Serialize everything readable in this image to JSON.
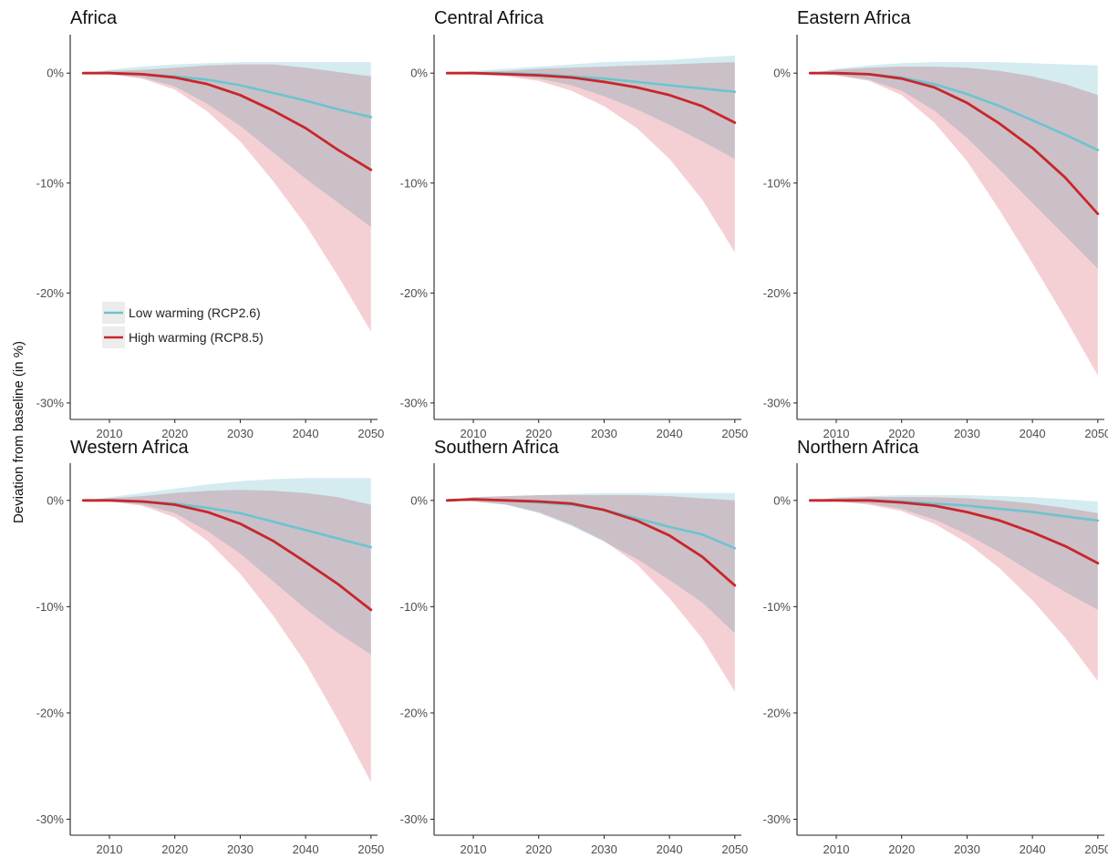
{
  "y_axis_title": "Deviation from baseline (in %)",
  "colors": {
    "low_line": "#6cc4d0",
    "low_band": "#cfeaee",
    "high_line": "#c8262b",
    "high_band": "#f0c0c6",
    "overlap_band": "#d9b7ba"
  },
  "chart_data": [
    {
      "type": "line",
      "title": "Africa",
      "x": [
        2006,
        2010,
        2015,
        2020,
        2025,
        2030,
        2035,
        2040,
        2045,
        2050
      ],
      "xticks": [
        "2010",
        "2020",
        "2030",
        "2040",
        "2050"
      ],
      "yticks": [
        "0%",
        "-10%",
        "-20%",
        "-30%"
      ],
      "xlim": [
        2004,
        2051
      ],
      "ylim": [
        -31.5,
        3.5
      ],
      "grid": false,
      "legend": {
        "position": "inside-left",
        "entries": [
          "Low warming (RCP2.6)",
          "High warming (RCP8.5)"
        ]
      },
      "series": [
        {
          "name": "Low warming (RCP2.6)",
          "values": [
            0,
            0,
            -0.1,
            -0.3,
            -0.6,
            -1.1,
            -1.8,
            -2.5,
            -3.3,
            -4.0
          ],
          "lower": [
            0,
            -0.1,
            -0.4,
            -1.2,
            -2.8,
            -4.8,
            -7.2,
            -9.6,
            -11.8,
            -14.0
          ],
          "upper": [
            0,
            0.3,
            0.6,
            0.8,
            0.9,
            1.0,
            1.0,
            1.0,
            1.0,
            1.0
          ]
        },
        {
          "name": "High warming (RCP8.5)",
          "values": [
            0,
            0,
            -0.1,
            -0.4,
            -1.0,
            -2.0,
            -3.4,
            -5.0,
            -7.0,
            -8.8
          ],
          "lower": [
            0,
            -0.1,
            -0.5,
            -1.5,
            -3.5,
            -6.2,
            -9.8,
            -13.8,
            -18.5,
            -23.5
          ],
          "upper": [
            0,
            0.2,
            0.3,
            0.5,
            0.7,
            0.8,
            0.8,
            0.5,
            0.1,
            -0.3
          ]
        }
      ]
    },
    {
      "type": "line",
      "title": "Central Africa",
      "x": [
        2006,
        2010,
        2015,
        2020,
        2025,
        2030,
        2035,
        2040,
        2045,
        2050
      ],
      "xticks": [
        "2010",
        "2020",
        "2030",
        "2040",
        "2050"
      ],
      "yticks": [
        "0%",
        "-10%",
        "-20%",
        "-30%"
      ],
      "xlim": [
        2004,
        2051
      ],
      "ylim": [
        -31.5,
        3.5
      ],
      "grid": false,
      "series": [
        {
          "name": "Low warming (RCP2.6)",
          "values": [
            0,
            0,
            0,
            -0.1,
            -0.3,
            -0.5,
            -0.8,
            -1.1,
            -1.4,
            -1.7
          ],
          "lower": [
            0,
            -0.1,
            -0.2,
            -0.5,
            -1.1,
            -2.1,
            -3.3,
            -4.7,
            -6.2,
            -7.8
          ],
          "upper": [
            0,
            0.2,
            0.4,
            0.6,
            0.8,
            1.0,
            1.1,
            1.2,
            1.4,
            1.6
          ]
        },
        {
          "name": "High warming (RCP8.5)",
          "values": [
            0,
            0,
            -0.1,
            -0.2,
            -0.4,
            -0.8,
            -1.3,
            -2.0,
            -3.0,
            -4.5
          ],
          "lower": [
            0,
            -0.1,
            -0.3,
            -0.7,
            -1.6,
            -3.0,
            -5.0,
            -7.8,
            -11.5,
            -16.3
          ],
          "upper": [
            0,
            0.1,
            0.2,
            0.4,
            0.5,
            0.6,
            0.7,
            0.8,
            0.9,
            1.0
          ]
        }
      ]
    },
    {
      "type": "line",
      "title": "Eastern Africa",
      "x": [
        2006,
        2010,
        2015,
        2020,
        2025,
        2030,
        2035,
        2040,
        2045,
        2050
      ],
      "xticks": [
        "2010",
        "2020",
        "2030",
        "2040",
        "2050"
      ],
      "yticks": [
        "0%",
        "-10%",
        "-20%",
        "-30%"
      ],
      "xlim": [
        2004,
        2051
      ],
      "ylim": [
        -31.5,
        3.5
      ],
      "grid": false,
      "series": [
        {
          "name": "Low warming (RCP2.6)",
          "values": [
            0,
            0,
            -0.1,
            -0.4,
            -1.0,
            -1.9,
            -3.0,
            -4.3,
            -5.6,
            -7.0
          ],
          "lower": [
            0,
            -0.2,
            -0.6,
            -1.6,
            -3.4,
            -5.9,
            -8.8,
            -11.8,
            -14.8,
            -17.8
          ],
          "upper": [
            0,
            0.4,
            0.7,
            0.9,
            1.0,
            1.0,
            1.0,
            0.9,
            0.8,
            0.7
          ]
        },
        {
          "name": "High warming (RCP8.5)",
          "values": [
            0,
            0,
            -0.1,
            -0.5,
            -1.3,
            -2.7,
            -4.6,
            -6.8,
            -9.5,
            -12.8
          ],
          "lower": [
            0,
            -0.2,
            -0.7,
            -2.0,
            -4.5,
            -8.0,
            -12.5,
            -17.3,
            -22.3,
            -27.5
          ],
          "upper": [
            0,
            0.3,
            0.5,
            0.6,
            0.6,
            0.5,
            0.2,
            -0.3,
            -1.0,
            -2.0
          ]
        }
      ]
    },
    {
      "type": "line",
      "title": "Western Africa",
      "x": [
        2006,
        2010,
        2015,
        2020,
        2025,
        2030,
        2035,
        2040,
        2045,
        2050
      ],
      "xticks": [
        "2010",
        "2020",
        "2030",
        "2040",
        "2050"
      ],
      "yticks": [
        "0%",
        "-10%",
        "-20%",
        "-30%"
      ],
      "xlim": [
        2004,
        2051
      ],
      "ylim": [
        -31.5,
        3.5
      ],
      "grid": false,
      "series": [
        {
          "name": "Low warming (RCP2.6)",
          "values": [
            0,
            0,
            -0.1,
            -0.3,
            -0.7,
            -1.2,
            -2.0,
            -2.8,
            -3.6,
            -4.4
          ],
          "lower": [
            0,
            -0.1,
            -0.4,
            -1.2,
            -2.9,
            -5.0,
            -7.6,
            -10.2,
            -12.5,
            -14.5
          ],
          "upper": [
            0,
            0.3,
            0.7,
            1.1,
            1.5,
            1.8,
            2.0,
            2.1,
            2.1,
            2.1
          ]
        },
        {
          "name": "High warming (RCP8.5)",
          "values": [
            0,
            0,
            -0.1,
            -0.4,
            -1.1,
            -2.2,
            -3.8,
            -5.8,
            -7.9,
            -10.3
          ],
          "lower": [
            0,
            -0.1,
            -0.5,
            -1.6,
            -3.8,
            -6.9,
            -10.8,
            -15.3,
            -20.7,
            -26.5
          ],
          "upper": [
            0,
            0.2,
            0.4,
            0.7,
            0.9,
            1.0,
            0.9,
            0.7,
            0.3,
            -0.4
          ]
        }
      ]
    },
    {
      "type": "line",
      "title": "Southern Africa",
      "x": [
        2006,
        2010,
        2015,
        2020,
        2025,
        2030,
        2035,
        2040,
        2045,
        2050
      ],
      "xticks": [
        "2010",
        "2020",
        "2030",
        "2040",
        "2050"
      ],
      "yticks": [
        "0%",
        "-10%",
        "-20%",
        "-30%"
      ],
      "xlim": [
        2004,
        2051
      ],
      "ylim": [
        -31.5,
        3.5
      ],
      "grid": false,
      "series": [
        {
          "name": "Low warming (RCP2.6)",
          "values": [
            0,
            0.1,
            0,
            -0.2,
            -0.4,
            -0.9,
            -1.7,
            -2.5,
            -3.2,
            -4.5
          ],
          "lower": [
            0,
            -0.1,
            -0.4,
            -1.2,
            -2.4,
            -3.9,
            -5.5,
            -7.5,
            -9.6,
            -12.5
          ],
          "upper": [
            0,
            0.3,
            0.4,
            0.5,
            0.6,
            0.7,
            0.7,
            0.7,
            0.7,
            0.7
          ]
        },
        {
          "name": "High warming (RCP8.5)",
          "values": [
            0,
            0.1,
            0,
            -0.1,
            -0.3,
            -0.9,
            -1.9,
            -3.3,
            -5.3,
            -8.0
          ],
          "lower": [
            0,
            -0.1,
            -0.4,
            -1.1,
            -2.3,
            -3.8,
            -6.0,
            -9.2,
            -13.0,
            -18.0
          ],
          "upper": [
            0,
            0.3,
            0.4,
            0.5,
            0.5,
            0.5,
            0.5,
            0.4,
            0.2,
            0.0
          ]
        }
      ]
    },
    {
      "type": "line",
      "title": "Northern Africa",
      "x": [
        2006,
        2010,
        2015,
        2020,
        2025,
        2030,
        2035,
        2040,
        2045,
        2050
      ],
      "xticks": [
        "2010",
        "2020",
        "2030",
        "2040",
        "2050"
      ],
      "yticks": [
        "0%",
        "-10%",
        "-20%",
        "-30%"
      ],
      "xlim": [
        2004,
        2051
      ],
      "ylim": [
        -31.5,
        3.5
      ],
      "grid": false,
      "series": [
        {
          "name": "Low warming (RCP2.6)",
          "values": [
            0,
            0,
            0,
            -0.1,
            -0.3,
            -0.5,
            -0.8,
            -1.1,
            -1.5,
            -1.9
          ],
          "lower": [
            0,
            -0.1,
            -0.3,
            -0.8,
            -1.8,
            -3.2,
            -4.9,
            -6.8,
            -8.6,
            -10.3
          ],
          "upper": [
            0,
            0.3,
            0.4,
            0.5,
            0.5,
            0.5,
            0.4,
            0.3,
            0.1,
            -0.1
          ]
        },
        {
          "name": "High warming (RCP8.5)",
          "values": [
            0,
            0,
            0,
            -0.2,
            -0.5,
            -1.1,
            -1.9,
            -3.0,
            -4.3,
            -5.9
          ],
          "lower": [
            0,
            -0.1,
            -0.4,
            -1.0,
            -2.2,
            -4.0,
            -6.4,
            -9.4,
            -12.9,
            -17.0
          ],
          "upper": [
            0,
            0.2,
            0.3,
            0.3,
            0.3,
            0.2,
            0.0,
            -0.3,
            -0.7,
            -1.2
          ]
        }
      ]
    }
  ]
}
